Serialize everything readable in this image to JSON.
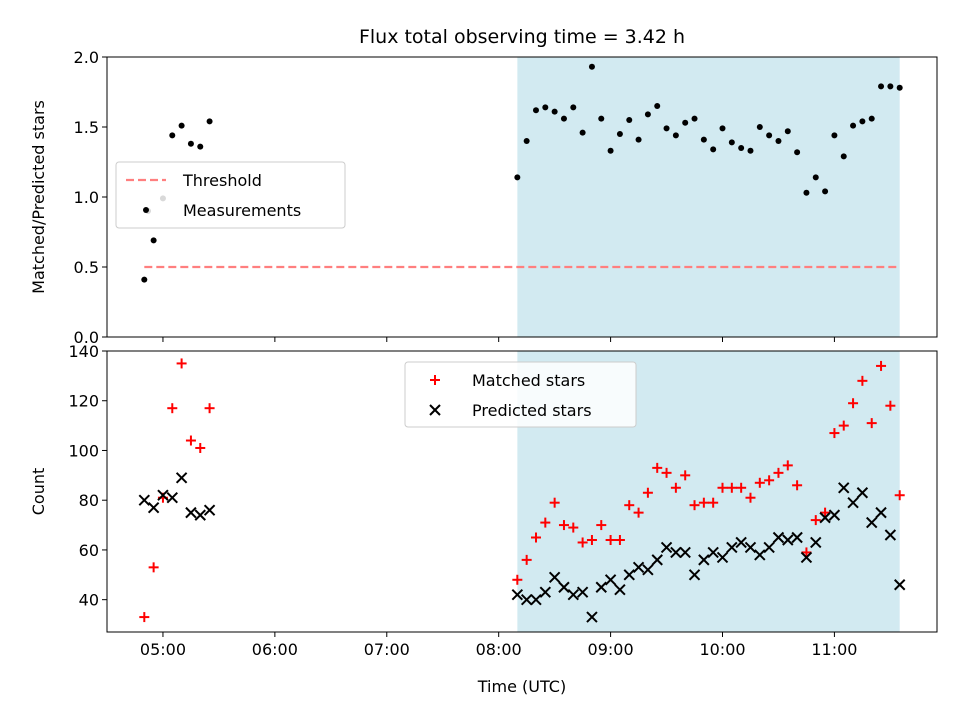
{
  "figure": {
    "title": "Flux total observing time = 3.42 h"
  },
  "chart_data": [
    {
      "type": "scatter",
      "ylabel": "Matched/Predicted stars",
      "ylim": [
        0.0,
        2.0
      ],
      "yticks": [
        "0.0",
        "0.5",
        "1.0",
        "1.5",
        "2.0"
      ],
      "xlim": [
        "04:30",
        "11:55"
      ],
      "xticks": [
        "05:00",
        "06:00",
        "07:00",
        "08:00",
        "09:00",
        "10:00",
        "11:00"
      ],
      "shaded_span": [
        "08:10",
        "11:35"
      ],
      "shaded_color": "#add8e6",
      "legend": {
        "placement": "center-left",
        "entries": [
          "Threshold",
          "Measurements"
        ]
      },
      "series": [
        {
          "name": "Threshold",
          "style": "dashed-line",
          "color": "#ff7f7f",
          "points": [
            [
              "04:50",
              0.5
            ],
            [
              "11:35",
              0.5
            ]
          ]
        },
        {
          "name": "Measurements",
          "style": "dot",
          "color": "#000000",
          "points": [
            [
              "04:50",
              0.41
            ],
            [
              "04:52",
              0.9
            ],
            [
              "04:55",
              0.69
            ],
            [
              "05:00",
              0.99
            ],
            [
              "05:05",
              1.44
            ],
            [
              "05:10",
              1.51
            ],
            [
              "05:15",
              1.38
            ],
            [
              "05:20",
              1.36
            ],
            [
              "05:25",
              1.54
            ],
            [
              "08:10",
              1.14
            ],
            [
              "08:15",
              1.4
            ],
            [
              "08:20",
              1.62
            ],
            [
              "08:25",
              1.64
            ],
            [
              "08:30",
              1.61
            ],
            [
              "08:35",
              1.56
            ],
            [
              "08:40",
              1.64
            ],
            [
              "08:45",
              1.46
            ],
            [
              "08:50",
              1.93
            ],
            [
              "08:55",
              1.56
            ],
            [
              "09:00",
              1.33
            ],
            [
              "09:05",
              1.45
            ],
            [
              "09:10",
              1.55
            ],
            [
              "09:15",
              1.41
            ],
            [
              "09:20",
              1.59
            ],
            [
              "09:25",
              1.65
            ],
            [
              "09:30",
              1.49
            ],
            [
              "09:35",
              1.44
            ],
            [
              "09:40",
              1.53
            ],
            [
              "09:45",
              1.56
            ],
            [
              "09:50",
              1.41
            ],
            [
              "09:55",
              1.34
            ],
            [
              "10:00",
              1.49
            ],
            [
              "10:05",
              1.39
            ],
            [
              "10:10",
              1.35
            ],
            [
              "10:15",
              1.33
            ],
            [
              "10:20",
              1.5
            ],
            [
              "10:25",
              1.44
            ],
            [
              "10:30",
              1.4
            ],
            [
              "10:35",
              1.47
            ],
            [
              "10:40",
              1.32
            ],
            [
              "10:45",
              1.03
            ],
            [
              "10:50",
              1.14
            ],
            [
              "10:55",
              1.04
            ],
            [
              "11:00",
              1.44
            ],
            [
              "11:05",
              1.29
            ],
            [
              "11:10",
              1.51
            ],
            [
              "11:15",
              1.54
            ],
            [
              "11:20",
              1.56
            ],
            [
              "11:25",
              1.79
            ],
            [
              "11:30",
              1.79
            ],
            [
              "11:35",
              1.78
            ]
          ]
        }
      ]
    },
    {
      "type": "scatter",
      "xlabel": "Time (UTC)",
      "ylabel": "Count",
      "ylim": [
        27,
        140
      ],
      "yticks": [
        "40",
        "60",
        "80",
        "100",
        "120",
        "140"
      ],
      "xlim": [
        "04:30",
        "11:55"
      ],
      "xticks": [
        "05:00",
        "06:00",
        "07:00",
        "08:00",
        "09:00",
        "10:00",
        "11:00"
      ],
      "shaded_span": [
        "08:10",
        "11:35"
      ],
      "shaded_color": "#add8e6",
      "legend": {
        "placement": "upper-center",
        "entries": [
          "Matched stars",
          "Predicted stars"
        ]
      },
      "series": [
        {
          "name": "Matched stars",
          "marker": "+",
          "color": "#ff0000",
          "points": [
            [
              "04:50",
              33
            ],
            [
              "04:55",
              53
            ],
            [
              "05:00",
              81
            ],
            [
              "05:05",
              117
            ],
            [
              "05:10",
              135
            ],
            [
              "05:15",
              104
            ],
            [
              "05:20",
              101
            ],
            [
              "05:25",
              117
            ],
            [
              "08:10",
              48
            ],
            [
              "08:15",
              56
            ],
            [
              "08:20",
              65
            ],
            [
              "08:25",
              71
            ],
            [
              "08:30",
              79
            ],
            [
              "08:35",
              70
            ],
            [
              "08:40",
              69
            ],
            [
              "08:45",
              63
            ],
            [
              "08:50",
              64
            ],
            [
              "08:55",
              70
            ],
            [
              "09:00",
              64
            ],
            [
              "09:05",
              64
            ],
            [
              "09:10",
              78
            ],
            [
              "09:15",
              75
            ],
            [
              "09:20",
              83
            ],
            [
              "09:25",
              93
            ],
            [
              "09:30",
              91
            ],
            [
              "09:35",
              85
            ],
            [
              "09:40",
              90
            ],
            [
              "09:45",
              78
            ],
            [
              "09:50",
              79
            ],
            [
              "09:55",
              79
            ],
            [
              "10:00",
              85
            ],
            [
              "10:05",
              85
            ],
            [
              "10:10",
              85
            ],
            [
              "10:15",
              81
            ],
            [
              "10:20",
              87
            ],
            [
              "10:25",
              88
            ],
            [
              "10:30",
              91
            ],
            [
              "10:35",
              94
            ],
            [
              "10:40",
              86
            ],
            [
              "10:45",
              59
            ],
            [
              "10:50",
              72
            ],
            [
              "10:55",
              75
            ],
            [
              "11:00",
              107
            ],
            [
              "11:05",
              110
            ],
            [
              "11:10",
              119
            ],
            [
              "11:15",
              128
            ],
            [
              "11:20",
              111
            ],
            [
              "11:25",
              134
            ],
            [
              "11:30",
              118
            ],
            [
              "11:35",
              82
            ]
          ]
        },
        {
          "name": "Predicted stars",
          "marker": "x",
          "color": "#000000",
          "points": [
            [
              "04:50",
              80
            ],
            [
              "04:55",
              77
            ],
            [
              "05:00",
              82
            ],
            [
              "05:05",
              81
            ],
            [
              "05:10",
              89
            ],
            [
              "05:15",
              75
            ],
            [
              "05:20",
              74
            ],
            [
              "05:25",
              76
            ],
            [
              "08:10",
              42
            ],
            [
              "08:15",
              40
            ],
            [
              "08:20",
              40
            ],
            [
              "08:25",
              43
            ],
            [
              "08:30",
              49
            ],
            [
              "08:35",
              45
            ],
            [
              "08:40",
              42
            ],
            [
              "08:45",
              43
            ],
            [
              "08:50",
              33
            ],
            [
              "08:55",
              45
            ],
            [
              "09:00",
              48
            ],
            [
              "09:05",
              44
            ],
            [
              "09:10",
              50
            ],
            [
              "09:15",
              53
            ],
            [
              "09:20",
              52
            ],
            [
              "09:25",
              56
            ],
            [
              "09:30",
              61
            ],
            [
              "09:35",
              59
            ],
            [
              "09:40",
              59
            ],
            [
              "09:45",
              50
            ],
            [
              "09:50",
              56
            ],
            [
              "09:55",
              59
            ],
            [
              "10:00",
              57
            ],
            [
              "10:05",
              61
            ],
            [
              "10:10",
              63
            ],
            [
              "10:15",
              61
            ],
            [
              "10:20",
              58
            ],
            [
              "10:25",
              61
            ],
            [
              "10:30",
              65
            ],
            [
              "10:35",
              64
            ],
            [
              "10:40",
              65
            ],
            [
              "10:45",
              57
            ],
            [
              "10:50",
              63
            ],
            [
              "10:55",
              73
            ],
            [
              "11:00",
              74
            ],
            [
              "11:05",
              85
            ],
            [
              "11:10",
              79
            ],
            [
              "11:15",
              83
            ],
            [
              "11:20",
              71
            ],
            [
              "11:25",
              75
            ],
            [
              "11:30",
              66
            ],
            [
              "11:35",
              46
            ]
          ]
        }
      ]
    }
  ]
}
